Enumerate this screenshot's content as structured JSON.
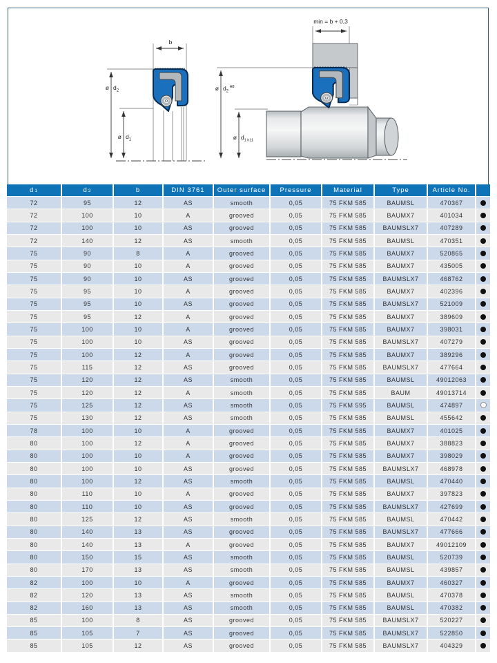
{
  "colors": {
    "header_blue": "#0f73b8",
    "row_blue": "#cbd9eb",
    "row_gray": "#e9e9ea",
    "page_border": "#2e5f7d",
    "seal_blue": "#1a70bc",
    "seal_outline": "#0a2c50",
    "metal_gray": "#b3b8bc",
    "housing_gray": "#c6c9cb",
    "dot_black": "#111111"
  },
  "diagrams": {
    "left": {
      "dim_b": "b",
      "d2_prefix": "ø",
      "d2_base": "d",
      "d2_sub": "2",
      "d1_prefix": "ø",
      "d1_base": "d",
      "d1_sub": "1"
    },
    "right": {
      "min_label": "min = b + 0,3",
      "d2_prefix": "ø",
      "d2_base": "d",
      "d2_sub": "2",
      "d2_tol": "H8",
      "d1_prefix": "ø",
      "d1_base": "d",
      "d1_sub": "1",
      "d1_tol": "h11"
    }
  },
  "table": {
    "headers": {
      "d1_base": "d",
      "d1_sub": "1",
      "d2_base": "d",
      "d2_sub": "2",
      "b": "b",
      "din": "DIN 3761",
      "surface": "Outer surface",
      "pressure": "Pressure",
      "material": "Material",
      "type": "Type",
      "article": "Article No."
    },
    "rows": [
      [
        "72",
        "95",
        "12",
        "AS",
        "smooth",
        "0,05",
        "75 FKM 585",
        "BAUMSL",
        "470367",
        "filled"
      ],
      [
        "72",
        "100",
        "10",
        "A",
        "grooved",
        "0,05",
        "75 FKM 585",
        "BAUMX7",
        "401034",
        "filled"
      ],
      [
        "72",
        "100",
        "10",
        "AS",
        "grooved",
        "0,05",
        "75 FKM 585",
        "BAUMSLX7",
        "407289",
        "filled"
      ],
      [
        "72",
        "140",
        "12",
        "AS",
        "smooth",
        "0,05",
        "75 FKM 585",
        "BAUMSL",
        "470351",
        "filled"
      ],
      [
        "75",
        "90",
        "8",
        "A",
        "grooved",
        "0,05",
        "75 FKM 585",
        "BAUMX7",
        "520865",
        "filled"
      ],
      [
        "75",
        "90",
        "10",
        "A",
        "grooved",
        "0,05",
        "75 FKM 585",
        "BAUMX7",
        "435005",
        "filled"
      ],
      [
        "75",
        "90",
        "10",
        "AS",
        "grooved",
        "0,05",
        "75 FKM 585",
        "BAUMSLX7",
        "468762",
        "filled"
      ],
      [
        "75",
        "95",
        "10",
        "A",
        "grooved",
        "0,05",
        "75 FKM 585",
        "BAUMX7",
        "402396",
        "filled"
      ],
      [
        "75",
        "95",
        "10",
        "AS",
        "grooved",
        "0,05",
        "75 FKM 585",
        "BAUMSLX7",
        "521009",
        "filled"
      ],
      [
        "75",
        "95",
        "12",
        "A",
        "grooved",
        "0,05",
        "75 FKM 585",
        "BAUMX7",
        "389609",
        "filled"
      ],
      [
        "75",
        "100",
        "10",
        "A",
        "grooved",
        "0,05",
        "75 FKM 585",
        "BAUMX7",
        "398031",
        "filled"
      ],
      [
        "75",
        "100",
        "10",
        "AS",
        "grooved",
        "0,05",
        "75 FKM 585",
        "BAUMSLX7",
        "407279",
        "filled"
      ],
      [
        "75",
        "100",
        "12",
        "A",
        "grooved",
        "0,05",
        "75 FKM 585",
        "BAUMX7",
        "389296",
        "filled"
      ],
      [
        "75",
        "115",
        "12",
        "AS",
        "grooved",
        "0,05",
        "75 FKM 585",
        "BAUMSLX7",
        "477664",
        "filled"
      ],
      [
        "75",
        "120",
        "12",
        "AS",
        "smooth",
        "0,05",
        "75 FKM 585",
        "BAUMSL",
        "49012063",
        "filled"
      ],
      [
        "75",
        "120",
        "12",
        "A",
        "smooth",
        "0,05",
        "75 FKM 585",
        "BAUM",
        "49013714",
        "filled"
      ],
      [
        "75",
        "125",
        "12",
        "AS",
        "smooth",
        "0,05",
        "75 FKM 595",
        "BAUMSL",
        "474897",
        "open"
      ],
      [
        "75",
        "130",
        "12",
        "AS",
        "smooth",
        "0,05",
        "75 FKM 585",
        "BAUMSL",
        "455642",
        "filled"
      ],
      [
        "78",
        "100",
        "10",
        "A",
        "grooved",
        "0,05",
        "75 FKM 585",
        "BAUMX7",
        "401025",
        "filled"
      ],
      [
        "80",
        "100",
        "12",
        "A",
        "grooved",
        "0,05",
        "75 FKM 585",
        "BAUMX7",
        "388823",
        "filled"
      ],
      [
        "80",
        "100",
        "10",
        "A",
        "grooved",
        "0,05",
        "75 FKM 585",
        "BAUMX7",
        "398029",
        "filled"
      ],
      [
        "80",
        "100",
        "10",
        "AS",
        "grooved",
        "0,05",
        "75 FKM 585",
        "BAUMSLX7",
        "468978",
        "filled"
      ],
      [
        "80",
        "100",
        "12",
        "AS",
        "smooth",
        "0,05",
        "75 FKM 585",
        "BAUMSL",
        "470440",
        "filled"
      ],
      [
        "80",
        "110",
        "10",
        "A",
        "grooved",
        "0,05",
        "75 FKM 585",
        "BAUMX7",
        "397823",
        "filled"
      ],
      [
        "80",
        "110",
        "10",
        "AS",
        "grooved",
        "0,05",
        "75 FKM 585",
        "BAUMSLX7",
        "427699",
        "filled"
      ],
      [
        "80",
        "125",
        "12",
        "AS",
        "smooth",
        "0,05",
        "75 FKM 585",
        "BAUMSL",
        "470442",
        "filled"
      ],
      [
        "80",
        "140",
        "13",
        "AS",
        "grooved",
        "0,05",
        "75 FKM 585",
        "BAUMSLX7",
        "477666",
        "filled"
      ],
      [
        "80",
        "140",
        "13",
        "A",
        "grooved",
        "0,05",
        "75 FKM 585",
        "BAUMX7",
        "49012109",
        "filled"
      ],
      [
        "80",
        "150",
        "15",
        "AS",
        "smooth",
        "0,05",
        "75 FKM 585",
        "BAUMSL",
        "520739",
        "filled"
      ],
      [
        "80",
        "170",
        "13",
        "AS",
        "smooth",
        "0,05",
        "75 FKM 585",
        "BAUMSL",
        "439857",
        "filled"
      ],
      [
        "82",
        "100",
        "10",
        "A",
        "grooved",
        "0,05",
        "75 FKM 585",
        "BAUMX7",
        "460327",
        "filled"
      ],
      [
        "82",
        "120",
        "13",
        "AS",
        "smooth",
        "0,05",
        "75 FKM 585",
        "BAUMSL",
        "470378",
        "filled"
      ],
      [
        "82",
        "160",
        "13",
        "AS",
        "smooth",
        "0,05",
        "75 FKM 585",
        "BAUMSL",
        "470382",
        "filled"
      ],
      [
        "85",
        "100",
        "8",
        "AS",
        "grooved",
        "0,05",
        "75 FKM 585",
        "BAUMSLX7",
        "520227",
        "filled"
      ],
      [
        "85",
        "105",
        "7",
        "AS",
        "grooved",
        "0,05",
        "75 FKM 585",
        "BAUMSLX7",
        "522850",
        "filled"
      ],
      [
        "85",
        "105",
        "12",
        "AS",
        "grooved",
        "0,05",
        "75 FKM 585",
        "BAUMSLX7",
        "404329",
        "filled"
      ]
    ]
  }
}
